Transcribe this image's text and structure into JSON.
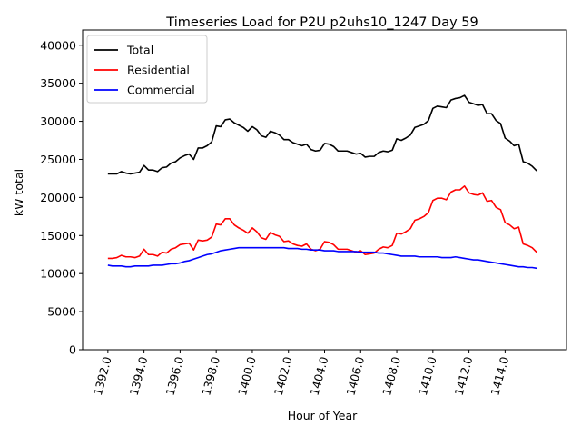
{
  "chart_data": {
    "type": "line",
    "title": "Timeseries Load for P2U p2uhs10_1247  Day 59",
    "xlabel": "Hour of Year",
    "ylabel": "kW total",
    "xlim": [
      1390.6,
      1417.4
    ],
    "ylim": [
      0,
      42000
    ],
    "xticks": [
      1392,
      1394,
      1396,
      1398,
      1400,
      1402,
      1404,
      1406,
      1408,
      1410,
      1412,
      1414
    ],
    "xtick_labels": [
      "1392.0",
      "1394.0",
      "1396.0",
      "1398.0",
      "1400.0",
      "1402.0",
      "1404.0",
      "1406.0",
      "1408.0",
      "1410.0",
      "1412.0",
      "1414.0"
    ],
    "yticks": [
      0,
      5000,
      10000,
      15000,
      20000,
      25000,
      30000,
      35000,
      40000
    ],
    "ytick_labels": [
      "0",
      "5000",
      "10000",
      "15000",
      "20000",
      "25000",
      "30000",
      "35000",
      "40000"
    ],
    "grid": false,
    "legend_position": "top-left",
    "x_start": 1392,
    "x_step": 0.25,
    "series": [
      {
        "name": "Total",
        "color": "#000000",
        "values": [
          23100,
          23100,
          23100,
          23400,
          23200,
          23100,
          23200,
          23300,
          24200,
          23600,
          23600,
          23400,
          23900,
          24000,
          24500,
          24700,
          25200,
          25500,
          25700,
          25000,
          26500,
          26500,
          26800,
          27300,
          29400,
          29300,
          30200,
          30300,
          29800,
          29500,
          29200,
          28700,
          29300,
          28900,
          28100,
          27900,
          28700,
          28500,
          28200,
          27600,
          27600,
          27200,
          27000,
          26800,
          27000,
          26300,
          26100,
          26200,
          27100,
          27000,
          26700,
          26100,
          26100,
          26100,
          25900,
          25700,
          25800,
          25300,
          25400,
          25400,
          25900,
          26100,
          26000,
          26200,
          27700,
          27500,
          27800,
          28200,
          29200,
          29400,
          29600,
          30100,
          31700,
          32000,
          31900,
          31800,
          32800,
          33000,
          33100,
          33400,
          32500,
          32300,
          32100,
          32200,
          31000,
          31000,
          30100,
          29700,
          27800,
          27400,
          26800,
          27000,
          24700,
          24500,
          24100,
          23500
        ]
      },
      {
        "name": "Residential",
        "color": "#ff0000",
        "values": [
          12000,
          12000,
          12100,
          12400,
          12200,
          12200,
          12100,
          12300,
          13200,
          12500,
          12500,
          12300,
          12800,
          12700,
          13200,
          13400,
          13800,
          13900,
          14000,
          13100,
          14400,
          14300,
          14400,
          14800,
          16500,
          16400,
          17200,
          17200,
          16400,
          16000,
          15700,
          15300,
          16000,
          15500,
          14700,
          14500,
          15400,
          15100,
          14900,
          14200,
          14300,
          13900,
          13700,
          13600,
          13900,
          13200,
          13000,
          13200,
          14200,
          14100,
          13800,
          13200,
          13200,
          13200,
          13000,
          12800,
          13000,
          12500,
          12600,
          12700,
          13200,
          13500,
          13400,
          13700,
          15300,
          15200,
          15500,
          15900,
          17000,
          17200,
          17500,
          18000,
          19600,
          19900,
          19900,
          19700,
          20700,
          21000,
          21000,
          21500,
          20600,
          20400,
          20300,
          20600,
          19500,
          19600,
          18700,
          18400,
          16700,
          16400,
          15900,
          16100,
          13900,
          13700,
          13400,
          12800
        ]
      },
      {
        "name": "Commercial",
        "color": "#0000ff",
        "values": [
          11100,
          11000,
          11000,
          11000,
          10900,
          10900,
          11000,
          11000,
          11000,
          11000,
          11100,
          11100,
          11100,
          11200,
          11300,
          11300,
          11400,
          11600,
          11700,
          11900,
          12100,
          12300,
          12500,
          12600,
          12800,
          13000,
          13100,
          13200,
          13300,
          13400,
          13400,
          13400,
          13400,
          13400,
          13400,
          13400,
          13400,
          13400,
          13400,
          13400,
          13300,
          13300,
          13300,
          13200,
          13200,
          13100,
          13100,
          13100,
          13000,
          13000,
          13000,
          12900,
          12900,
          12900,
          12900,
          12900,
          12800,
          12800,
          12800,
          12800,
          12700,
          12700,
          12600,
          12500,
          12400,
          12300,
          12300,
          12300,
          12300,
          12200,
          12200,
          12200,
          12200,
          12200,
          12100,
          12100,
          12100,
          12200,
          12100,
          12000,
          11900,
          11800,
          11800,
          11700,
          11600,
          11500,
          11400,
          11300,
          11200,
          11100,
          11000,
          10900,
          10900,
          10800,
          10800,
          10700
        ]
      }
    ]
  }
}
